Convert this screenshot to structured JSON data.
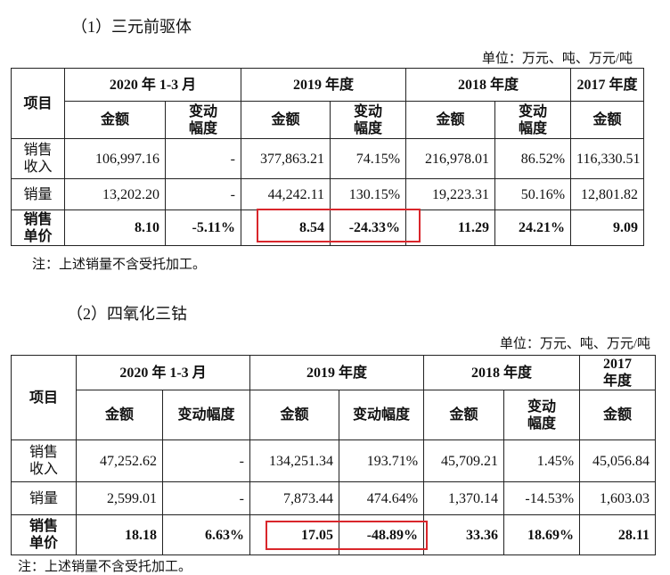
{
  "sections": [
    {
      "title": "（1）三元前驱体",
      "unit": "单位：万元、吨、万元/吨",
      "header": {
        "item": "项目",
        "periods": [
          "2020 年 1-3 月",
          "2019 年度",
          "2018 年度",
          "2017 年度"
        ],
        "sub": [
          "金额",
          "变动幅度",
          "金额",
          "变动幅度",
          "金额",
          "变动幅度",
          "金额"
        ]
      },
      "rows": [
        [
          "销售收入",
          "106,997.16",
          "-",
          "377,863.21",
          "74.15%",
          "216,978.01",
          "86.52%",
          "116,330.51"
        ],
        [
          "销量",
          "13,202.20",
          "-",
          "44,242.11",
          "130.15%",
          "19,223.31",
          "50.16%",
          "12,801.82"
        ],
        [
          "销售单价",
          "8.10",
          "-5.11%",
          "8.54",
          "-24.33%",
          "11.29",
          "24.21%",
          "9.09"
        ]
      ],
      "note": "注：上述销量不含受托加工。"
    },
    {
      "title": "（2）四氧化三钴",
      "unit": "单位：万元、吨、万元/吨",
      "header": {
        "item": "项目",
        "periods": [
          "2020 年 1-3 月",
          "2019 年度",
          "2018 年度",
          "2017 年度"
        ],
        "sub": [
          "金额",
          "变动幅度",
          "金额",
          "变动幅度",
          "金额",
          "变动幅度",
          "金额"
        ]
      },
      "rows": [
        [
          "销售收入",
          "47,252.62",
          "-",
          "134,251.34",
          "193.71%",
          "45,709.21",
          "1.45%",
          "45,056.84"
        ],
        [
          "销量",
          "2,599.01",
          "-",
          "7,873.44",
          "474.64%",
          "1,370.14",
          "-14.53%",
          "1,603.03"
        ],
        [
          "销售单价",
          "18.18",
          "6.63%",
          "17.05",
          "-48.89%",
          "33.36",
          "18.69%",
          "28.11"
        ]
      ],
      "note": "注：上述销量不含受托加工。"
    }
  ]
}
